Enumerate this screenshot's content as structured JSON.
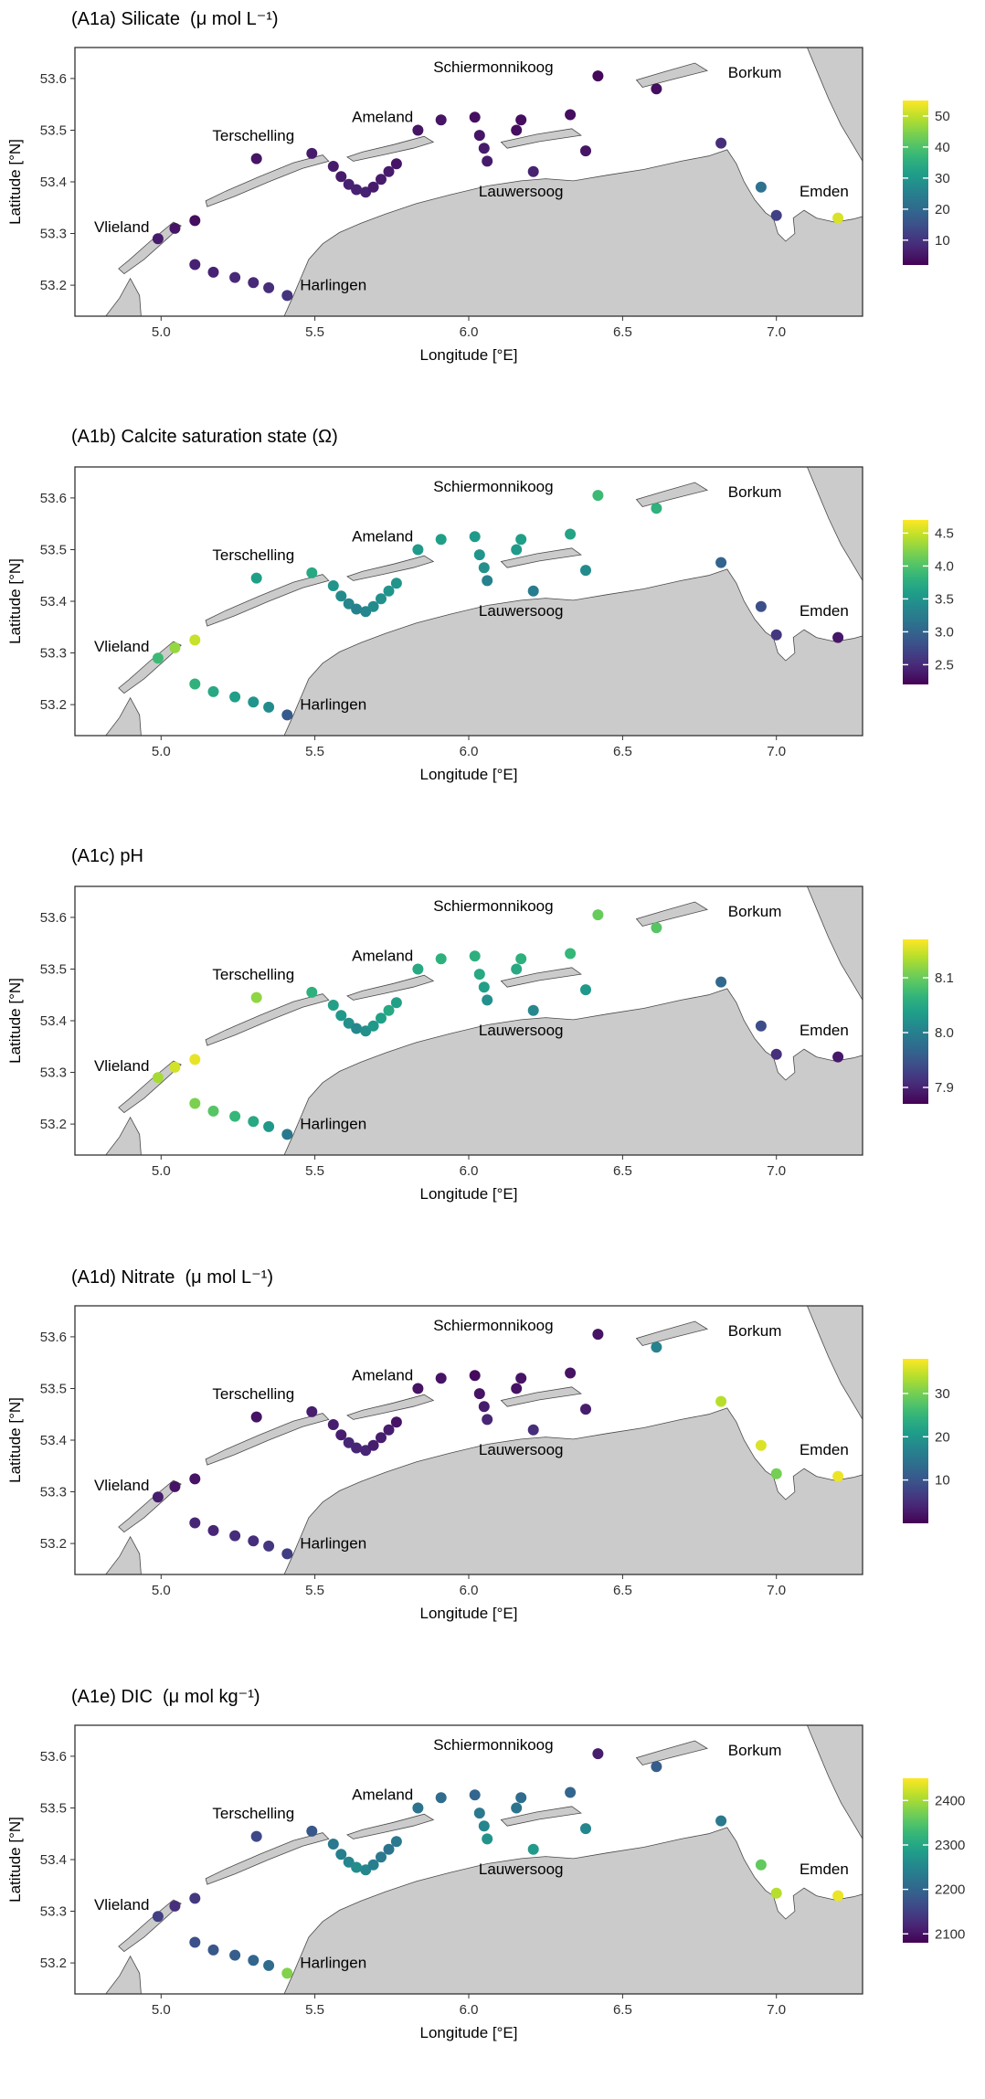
{
  "chart_data": {
    "type": "scatter",
    "shared": {
      "xlabel": "Longitude [°E]",
      "ylabel": "Latitude [°N]",
      "xlim": [
        4.72,
        7.28
      ],
      "ylim": [
        53.14,
        53.66
      ],
      "xticks": [
        5.0,
        5.5,
        6.0,
        6.5,
        7.0
      ],
      "xtick_labels": [
        "5.0",
        "5.5",
        "6.0",
        "6.5",
        "7.0"
      ],
      "yticks": [
        53.2,
        53.3,
        53.4,
        53.5,
        53.6
      ],
      "ytick_labels": [
        "53.2",
        "53.3",
        "53.4",
        "53.5",
        "53.6"
      ],
      "colormap": "viridis",
      "legend_position": "right",
      "grid": false,
      "place_labels": [
        {
          "name": "Vlieland",
          "lon": 4.872,
          "lat": 53.303
        },
        {
          "name": "Terschelling",
          "lon": 5.3,
          "lat": 53.48
        },
        {
          "name": "Ameland",
          "lon": 5.72,
          "lat": 53.516
        },
        {
          "name": "Schiermonnikoog",
          "lon": 6.08,
          "lat": 53.612
        },
        {
          "name": "Borkum",
          "lon": 6.93,
          "lat": 53.602
        },
        {
          "name": "Lauwersoog",
          "lon": 6.17,
          "lat": 53.372
        },
        {
          "name": "Harlingen",
          "lon": 5.56,
          "lat": 53.19
        },
        {
          "name": "Emden",
          "lon": 7.155,
          "lat": 53.372
        }
      ],
      "stations": [
        [
          4.99,
          53.29
        ],
        [
          5.045,
          53.31
        ],
        [
          5.11,
          53.325
        ],
        [
          5.11,
          53.24
        ],
        [
          5.17,
          53.225
        ],
        [
          5.24,
          53.215
        ],
        [
          5.3,
          53.205
        ],
        [
          5.35,
          53.195
        ],
        [
          5.41,
          53.18
        ],
        [
          5.31,
          53.445
        ],
        [
          5.49,
          53.455
        ],
        [
          5.56,
          53.43
        ],
        [
          5.585,
          53.41
        ],
        [
          5.61,
          53.395
        ],
        [
          5.635,
          53.385
        ],
        [
          5.665,
          53.38
        ],
        [
          5.69,
          53.39
        ],
        [
          5.715,
          53.405
        ],
        [
          5.74,
          53.42
        ],
        [
          5.765,
          53.435
        ],
        [
          5.835,
          53.5
        ],
        [
          5.91,
          53.52
        ],
        [
          6.02,
          53.525
        ],
        [
          6.035,
          53.49
        ],
        [
          6.05,
          53.465
        ],
        [
          6.06,
          53.44
        ],
        [
          6.155,
          53.5
        ],
        [
          6.17,
          53.52
        ],
        [
          6.21,
          53.42
        ],
        [
          6.33,
          53.53
        ],
        [
          6.38,
          53.46
        ],
        [
          6.42,
          53.605
        ],
        [
          6.61,
          53.58
        ],
        [
          6.82,
          53.475
        ],
        [
          6.95,
          53.39
        ],
        [
          7.0,
          53.335
        ],
        [
          7.2,
          53.33
        ]
      ],
      "land": {
        "mainland": [
          [
            5.4,
            53.14
          ],
          [
            5.43,
            53.18
          ],
          [
            5.455,
            53.215
          ],
          [
            5.48,
            53.25
          ],
          [
            5.525,
            53.28
          ],
          [
            5.58,
            53.302
          ],
          [
            5.65,
            53.32
          ],
          [
            5.73,
            53.338
          ],
          [
            5.83,
            53.358
          ],
          [
            5.94,
            53.375
          ],
          [
            6.06,
            53.392
          ],
          [
            6.17,
            53.402
          ],
          [
            6.25,
            53.406
          ],
          [
            6.34,
            53.402
          ],
          [
            6.45,
            53.413
          ],
          [
            6.57,
            53.424
          ],
          [
            6.69,
            53.44
          ],
          [
            6.78,
            53.45
          ],
          [
            6.84,
            53.462
          ],
          [
            6.87,
            53.435
          ],
          [
            6.895,
            53.4
          ],
          [
            6.93,
            53.365
          ],
          [
            6.965,
            53.34
          ],
          [
            6.99,
            53.33
          ],
          [
            7.005,
            53.3
          ],
          [
            7.03,
            53.285
          ],
          [
            7.06,
            53.3
          ],
          [
            7.055,
            53.33
          ],
          [
            7.09,
            53.345
          ],
          [
            7.13,
            53.33
          ],
          [
            7.19,
            53.322
          ],
          [
            7.25,
            53.328
          ],
          [
            7.28,
            53.333
          ],
          [
            7.28,
            53.14
          ]
        ],
        "northeast_coast": [
          [
            7.1,
            53.66
          ],
          [
            7.135,
            53.61
          ],
          [
            7.17,
            53.56
          ],
          [
            7.21,
            53.51
          ],
          [
            7.255,
            53.465
          ],
          [
            7.28,
            53.44
          ],
          [
            7.28,
            53.66
          ]
        ],
        "texel_tip": [
          [
            4.82,
            53.14
          ],
          [
            4.935,
            53.14
          ],
          [
            4.93,
            53.18
          ],
          [
            4.9,
            53.213
          ],
          [
            4.865,
            53.175
          ]
        ],
        "islands": {
          "vlieland": [
            [
              4.88,
              53.222
            ],
            [
              4.945,
              53.25
            ],
            [
              5.02,
              53.29
            ],
            [
              5.065,
              53.315
            ],
            [
              5.04,
              53.322
            ],
            [
              4.965,
              53.285
            ],
            [
              4.895,
              53.248
            ],
            [
              4.862,
              53.232
            ]
          ],
          "terschelling": [
            [
              5.15,
              53.352
            ],
            [
              5.24,
              53.372
            ],
            [
              5.35,
              53.4
            ],
            [
              5.46,
              53.426
            ],
            [
              5.545,
              53.44
            ],
            [
              5.525,
              53.452
            ],
            [
              5.43,
              53.437
            ],
            [
              5.32,
              53.41
            ],
            [
              5.21,
              53.382
            ],
            [
              5.145,
              53.363
            ]
          ],
          "ameland": [
            [
              5.625,
              53.44
            ],
            [
              5.72,
              53.452
            ],
            [
              5.82,
              53.465
            ],
            [
              5.885,
              53.477
            ],
            [
              5.855,
              53.488
            ],
            [
              5.755,
              53.472
            ],
            [
              5.655,
              53.458
            ],
            [
              5.605,
              53.448
            ]
          ],
          "schiermonnikoog": [
            [
              6.125,
              53.465
            ],
            [
              6.23,
              53.478
            ],
            [
              6.365,
              53.49
            ],
            [
              6.335,
              53.503
            ],
            [
              6.22,
              53.492
            ],
            [
              6.105,
              53.477
            ]
          ],
          "borkum": [
            [
              6.565,
              53.583
            ],
            [
              6.66,
              53.598
            ],
            [
              6.775,
              53.615
            ],
            [
              6.735,
              53.63
            ],
            [
              6.635,
              53.613
            ],
            [
              6.545,
              53.597
            ]
          ]
        }
      }
    },
    "panels": [
      {
        "id": "A1a",
        "title": "(A1a) Silicate  (μ mol L⁻¹)",
        "variable": "Silicate",
        "unit": "μ mol L⁻¹",
        "values": [
          6,
          5,
          4,
          7,
          7,
          8,
          8,
          9,
          10,
          5,
          6,
          6,
          6,
          7,
          7,
          7,
          6,
          6,
          6,
          5,
          5,
          5,
          4,
          5,
          6,
          6,
          4,
          4,
          7,
          4,
          5,
          3,
          4,
          9,
          22,
          12,
          52
        ],
        "scale": {
          "min": 2,
          "max": 55,
          "ticks": [
            10,
            20,
            30,
            40,
            50
          ],
          "tick_labels": [
            "10",
            "20",
            "30",
            "40",
            "50"
          ]
        }
      },
      {
        "id": "A1b",
        "title": "(A1b) Calcite saturation state (Ω)",
        "variable": "Calcite saturation state",
        "unit": "Ω",
        "values": [
          3.9,
          4.3,
          4.5,
          3.8,
          3.7,
          3.6,
          3.5,
          3.4,
          2.9,
          3.6,
          3.7,
          3.5,
          3.4,
          3.35,
          3.3,
          3.35,
          3.4,
          3.45,
          3.5,
          3.5,
          3.55,
          3.6,
          3.55,
          3.5,
          3.45,
          3.3,
          3.55,
          3.6,
          3.25,
          3.65,
          3.4,
          3.9,
          3.8,
          3.0,
          2.8,
          2.6,
          2.35
        ],
        "scale": {
          "min": 2.2,
          "max": 4.7,
          "ticks": [
            2.5,
            3.0,
            3.5,
            4.0,
            4.5
          ],
          "tick_labels": [
            "2.5",
            "3.0",
            "3.5",
            "4.0",
            "4.5"
          ]
        }
      },
      {
        "id": "A1c",
        "title": "(A1c) pH",
        "variable": "pH",
        "unit": "",
        "values": [
          8.13,
          8.15,
          8.16,
          8.11,
          8.09,
          8.07,
          8.05,
          8.03,
          7.99,
          8.12,
          8.06,
          8.04,
          8.03,
          8.02,
          8.01,
          8.02,
          8.03,
          8.04,
          8.05,
          8.04,
          8.05,
          8.06,
          8.06,
          8.05,
          8.04,
          8.02,
          8.05,
          8.06,
          8.01,
          8.07,
          8.03,
          8.1,
          8.09,
          7.97,
          7.94,
          7.91,
          7.89
        ],
        "scale": {
          "min": 7.87,
          "max": 8.17,
          "ticks": [
            7.9,
            8.0,
            8.1
          ],
          "tick_labels": [
            "7.9",
            "8.0",
            "8.1"
          ]
        }
      },
      {
        "id": "A1d",
        "title": "(A1d) Nitrate  (μ mol L⁻¹)",
        "variable": "Nitrate",
        "unit": "μ mol L⁻¹",
        "values": [
          3,
          2,
          2,
          4,
          4,
          5,
          5,
          6,
          7,
          2,
          3,
          3,
          3,
          4,
          4,
          4,
          3,
          3,
          3,
          2,
          2,
          2,
          1,
          2,
          3,
          4,
          2,
          2,
          5,
          2,
          3,
          2,
          17,
          34,
          36,
          30,
          37
        ],
        "scale": {
          "min": 0,
          "max": 38,
          "ticks": [
            10,
            20,
            30
          ],
          "tick_labels": [
            "10",
            "20",
            "30"
          ]
        }
      },
      {
        "id": "A1e",
        "title": "(A1e) DIC  (μ mol kg⁻¹)",
        "variable": "DIC",
        "unit": "μ mol kg⁻¹",
        "values": [
          2150,
          2130,
          2140,
          2170,
          2180,
          2190,
          2200,
          2210,
          2380,
          2160,
          2180,
          2230,
          2240,
          2250,
          2260,
          2250,
          2240,
          2230,
          2220,
          2230,
          2220,
          2210,
          2200,
          2230,
          2250,
          2270,
          2220,
          2210,
          2280,
          2200,
          2250,
          2110,
          2190,
          2230,
          2360,
          2410,
          2440
        ],
        "scale": {
          "min": 2080,
          "max": 2450,
          "ticks": [
            2100,
            2200,
            2300,
            2400
          ],
          "tick_labels": [
            "2100",
            "2200",
            "2300",
            "2400"
          ]
        }
      }
    ]
  }
}
